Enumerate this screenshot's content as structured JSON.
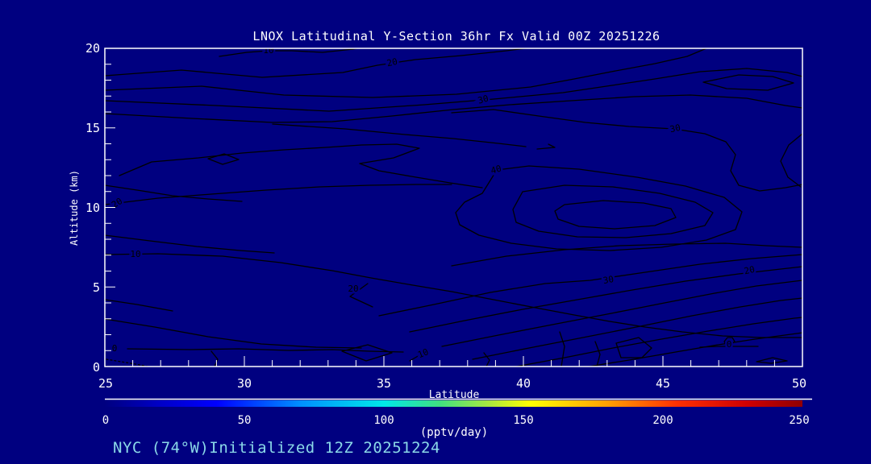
{
  "title": "LNOX Latitudinal Y-Section 36hr  Fx Valid 00Z 20251226",
  "annotation": "NYC (74°W)Initialized 12Z 20251224",
  "colors": {
    "background": "#000080",
    "frame": "#ffffff",
    "contour_lines": "#000000",
    "annotation_text": "#8bd9e8",
    "title_text": "#ffffff"
  },
  "axes": {
    "x": {
      "label": "Latitude",
      "ticks": [
        "25",
        "30",
        "35",
        "40",
        "45",
        "50"
      ]
    },
    "y": {
      "label": "Altitude (km)",
      "ticks": [
        "0",
        "5",
        "10",
        "15",
        "20"
      ]
    }
  },
  "colorbar": {
    "label": "(pptv/day)",
    "ticks": [
      "0",
      "50",
      "100",
      "150",
      "200",
      "250"
    ],
    "gradient": [
      "#000080",
      "#0000ff",
      "#0090ff",
      "#00e8e8",
      "#40e080",
      "#a8e840",
      "#ffff00",
      "#ffa000",
      "#ff3000",
      "#d00000",
      "#900000"
    ]
  },
  "contours": {
    "labels": [
      {
        "text": "10"
      },
      {
        "text": "20"
      },
      {
        "text": "30"
      },
      {
        "text": "30"
      },
      {
        "text": "40"
      },
      {
        "text": "20"
      },
      {
        "text": "10"
      },
      {
        "text": "20"
      },
      {
        "text": "30"
      },
      {
        "text": "20"
      },
      {
        "text": "0"
      },
      {
        "text": "10"
      },
      {
        "text": "0"
      }
    ]
  },
  "chart_data": {
    "type": "contour",
    "title": "LNOX Latitudinal Y-Section 36hr  Fx Valid 00Z 20251226",
    "subtitle": "NYC (74°W)Initialized 12Z 20251224",
    "xlabel": "Latitude",
    "ylabel": "Altitude (km)",
    "xlim": [
      25,
      50
    ],
    "ylim": [
      0,
      20
    ],
    "x_major_tick_step": 5,
    "y_major_tick_step": 5,
    "units": "pptv/day",
    "levels": [
      0,
      10,
      20,
      30,
      40,
      50,
      60
    ],
    "colorbar_range": [
      0,
      250
    ],
    "colorbar_ticks": [
      0,
      50,
      100,
      150,
      200,
      250
    ],
    "contour_labels": [
      {
        "value": 10,
        "lat": 30.9,
        "alt": 19.9
      },
      {
        "value": 20,
        "lat": 35.3,
        "alt": 19.1
      },
      {
        "value": 30,
        "lat": 38.6,
        "alt": 16.8
      },
      {
        "value": 30,
        "lat": 45.5,
        "alt": 14.9
      },
      {
        "value": 40,
        "lat": 39.0,
        "alt": 12.4
      },
      {
        "value": 20,
        "lat": 25.5,
        "alt": 10.3
      },
      {
        "value": 10,
        "lat": 26.1,
        "alt": 7.1
      },
      {
        "value": 20,
        "lat": 33.9,
        "alt": 4.9
      },
      {
        "value": 30,
        "lat": 43.1,
        "alt": 5.5
      },
      {
        "value": 20,
        "lat": 48.1,
        "alt": 6.0
      },
      {
        "value": 0,
        "lat": 25.3,
        "alt": 1.1
      },
      {
        "value": 10,
        "lat": 36.4,
        "alt": 0.9
      },
      {
        "value": 0,
        "lat": 47.3,
        "alt": 1.4
      }
    ],
    "maximum": {
      "lat": 42.5,
      "alt": 9.8,
      "value_exceeds": 60
    },
    "legend_position": "none",
    "grid": false
  }
}
